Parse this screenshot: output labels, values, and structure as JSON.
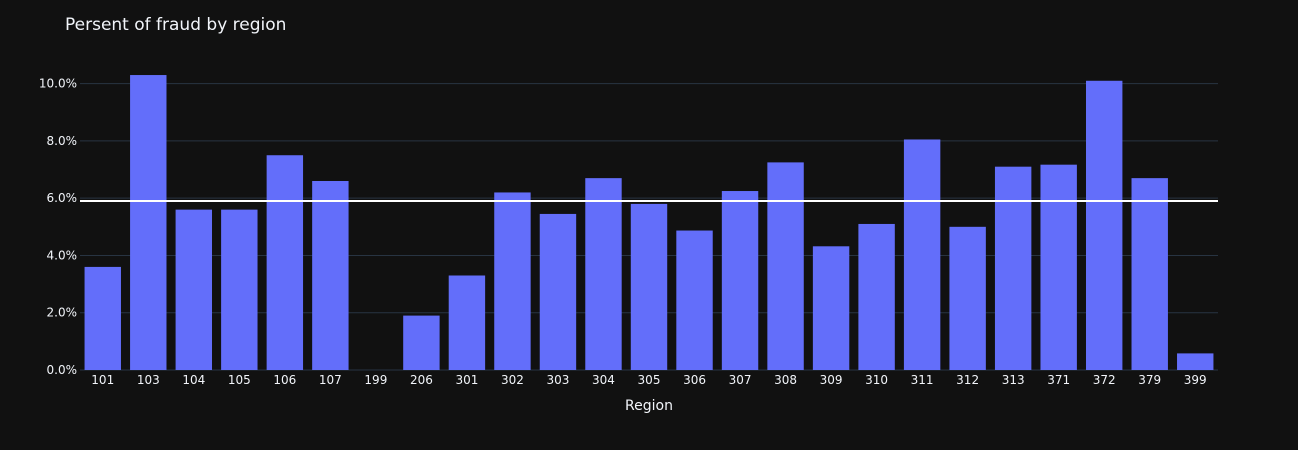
{
  "chart_data": {
    "type": "bar",
    "title": "Persent of fraud by region",
    "xlabel": "Region",
    "ylabel": "",
    "categories": [
      "101",
      "103",
      "104",
      "105",
      "106",
      "107",
      "199",
      "206",
      "301",
      "302",
      "303",
      "304",
      "305",
      "306",
      "307",
      "308",
      "309",
      "310",
      "311",
      "312",
      "313",
      "371",
      "372",
      "379",
      "399"
    ],
    "values": [
      3.6,
      10.3,
      5.6,
      5.6,
      7.5,
      6.6,
      0,
      1.9,
      3.3,
      6.2,
      5.45,
      6.7,
      5.8,
      4.87,
      6.25,
      7.25,
      4.32,
      5.1,
      8.05,
      5.0,
      7.1,
      7.17,
      10.1,
      6.7,
      0.58
    ],
    "ylim": [
      0,
      11
    ],
    "yticks": [
      0,
      2,
      4,
      6,
      8,
      10
    ],
    "ytick_labels": [
      "0.0%",
      "2.0%",
      "4.0%",
      "6.0%",
      "8.0%",
      "10.0%"
    ],
    "reference_line": 5.9,
    "grid": true,
    "colors": {
      "background": "#111111",
      "bar": "#636efa",
      "grid": "#283442",
      "reference_line": "#ffffff",
      "text": "#f2f5fa"
    }
  }
}
